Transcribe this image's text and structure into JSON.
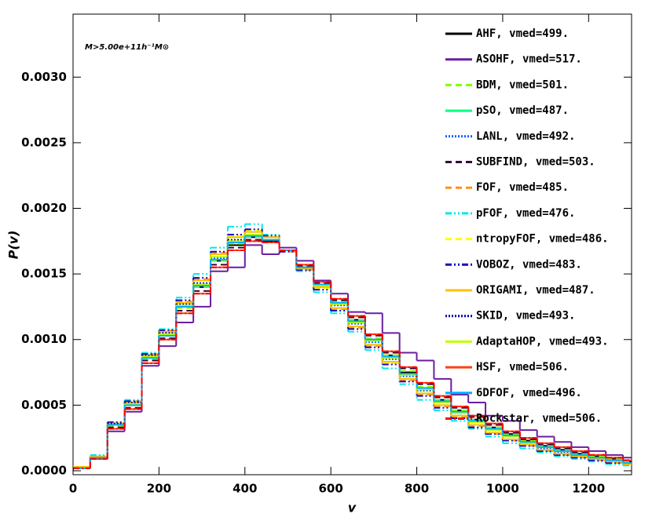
{
  "chart_data": {
    "type": "histogram",
    "annotation": "M>5.00e+11h⁻¹M⊙",
    "xlabel": "v",
    "ylabel": "P(v)",
    "xlim": [
      0,
      1300
    ],
    "ylim": [
      -3e-05,
      0.00348
    ],
    "xticks": [
      0,
      200,
      400,
      600,
      800,
      1000,
      1200
    ],
    "yticks": [
      {
        "value": 0,
        "label": "0.0000"
      },
      {
        "value": 0.0005,
        "label": "0.0005"
      },
      {
        "value": 0.001,
        "label": "0.0010"
      },
      {
        "value": 0.0015,
        "label": "0.0015"
      },
      {
        "value": 0.002,
        "label": "0.0020"
      },
      {
        "value": 0.0025,
        "label": "0.0025"
      },
      {
        "value": 0.003,
        "label": "0.0030"
      }
    ],
    "bins": [
      0,
      40,
      80,
      120,
      160,
      200,
      240,
      280,
      320,
      360,
      400,
      440,
      480,
      520,
      560,
      600,
      640,
      680,
      720,
      760,
      800,
      840,
      880,
      920,
      960,
      1000,
      1040,
      1080,
      1120,
      1160,
      1200,
      1240,
      1280,
      1320
    ],
    "series": [
      {
        "name": "AHF, vmed=499.",
        "color": "#000000",
        "dash": "solid",
        "values": [
          2e-05,
          0.0001,
          0.00035,
          0.0005,
          0.00086,
          0.00103,
          0.00125,
          0.0014,
          0.0016,
          0.00172,
          0.00178,
          0.00175,
          0.00168,
          0.00155,
          0.00142,
          0.00128,
          0.00115,
          0.001,
          0.00088,
          0.00075,
          0.00063,
          0.00054,
          0.00046,
          0.00039,
          0.00033,
          0.00028,
          0.00023,
          0.00019,
          0.00016,
          0.00013,
          0.00011,
          9e-05,
          7e-05
        ]
      },
      {
        "name": "ASOHF, vmed=517.",
        "color": "#6a1ea0",
        "dash": "solid",
        "values": [
          2e-05,
          9e-05,
          0.0003,
          0.00045,
          0.0008,
          0.00095,
          0.00113,
          0.00125,
          0.00152,
          0.00155,
          0.00172,
          0.00165,
          0.0017,
          0.0016,
          0.00145,
          0.00135,
          0.00121,
          0.0012,
          0.00105,
          0.0009,
          0.00084,
          0.0007,
          0.00058,
          0.00052,
          0.00042,
          0.00038,
          0.00031,
          0.00026,
          0.00022,
          0.00018,
          0.00015,
          0.00012,
          0.0001
        ]
      },
      {
        "name": "BDM, vmed=501.",
        "color": "#80ff00",
        "dash": "dashed",
        "values": [
          2e-05,
          0.0001,
          0.00034,
          0.0005,
          0.00085,
          0.00103,
          0.00124,
          0.0014,
          0.0016,
          0.00173,
          0.00178,
          0.00176,
          0.00168,
          0.00156,
          0.00142,
          0.00129,
          0.00115,
          0.00101,
          0.00088,
          0.00076,
          0.00064,
          0.00054,
          0.00046,
          0.00039,
          0.00033,
          0.00028,
          0.00023,
          0.00019,
          0.00016,
          0.00013,
          0.00011,
          9e-05,
          7e-05
        ]
      },
      {
        "name": "pSO, vmed=487.",
        "color": "#00ff80",
        "dash": "solid",
        "values": [
          3e-05,
          0.00011,
          0.00036,
          0.00052,
          0.00088,
          0.00106,
          0.00128,
          0.00145,
          0.00165,
          0.00178,
          0.00182,
          0.00178,
          0.00168,
          0.00154,
          0.0014,
          0.00124,
          0.0011,
          0.00096,
          0.00083,
          0.0007,
          0.00059,
          0.0005,
          0.00042,
          0.00035,
          0.00029,
          0.00024,
          0.0002,
          0.00016,
          0.00013,
          0.00011,
          9e-05,
          7e-05,
          5e-05
        ]
      },
      {
        "name": "LANL, vmed=492.",
        "color": "#0060ff",
        "dash": "dotted",
        "values": [
          2e-05,
          0.0001,
          0.00035,
          0.00051,
          0.00087,
          0.00104,
          0.00126,
          0.00142,
          0.00162,
          0.00175,
          0.0018,
          0.00176,
          0.00168,
          0.00155,
          0.00141,
          0.00126,
          0.00112,
          0.00098,
          0.00085,
          0.00072,
          0.00061,
          0.00052,
          0.00044,
          0.00037,
          0.00031,
          0.00026,
          0.00021,
          0.00017,
          0.00014,
          0.00012,
          0.0001,
          8e-05,
          6e-05
        ]
      },
      {
        "name": "SUBFIND, vmed=503.",
        "color": "#3a003a",
        "dash": "dashed",
        "values": [
          2e-05,
          9e-05,
          0.00033,
          0.00048,
          0.00084,
          0.00101,
          0.00122,
          0.00137,
          0.00157,
          0.0017,
          0.00176,
          0.00175,
          0.00168,
          0.00156,
          0.00143,
          0.0013,
          0.00117,
          0.00103,
          0.0009,
          0.00078,
          0.00066,
          0.00056,
          0.00048,
          0.00041,
          0.00035,
          0.00029,
          0.00024,
          0.0002,
          0.00017,
          0.00014,
          0.00012,
          0.0001,
          8e-05
        ]
      },
      {
        "name": "FOF, vmed=485.",
        "color": "#ff9020",
        "dash": "dashed",
        "values": [
          3e-05,
          0.00011,
          0.00036,
          0.00053,
          0.00089,
          0.00107,
          0.00129,
          0.00146,
          0.00166,
          0.00179,
          0.00183,
          0.00178,
          0.00167,
          0.00153,
          0.00139,
          0.00123,
          0.00109,
          0.00095,
          0.00082,
          0.00069,
          0.00058,
          0.00049,
          0.00041,
          0.00034,
          0.00028,
          0.00023,
          0.00019,
          0.00015,
          0.00012,
          0.0001,
          8e-05,
          6e-05,
          5e-05
        ]
      },
      {
        "name": "pFOF, vmed=476.",
        "color": "#00e8e8",
        "dash": "dashdotdot",
        "values": [
          3e-05,
          0.00012,
          0.00037,
          0.00054,
          0.0009,
          0.00108,
          0.00132,
          0.0015,
          0.0017,
          0.00186,
          0.00188,
          0.0018,
          0.00168,
          0.00152,
          0.00136,
          0.0012,
          0.00106,
          0.00092,
          0.00078,
          0.00066,
          0.00054,
          0.00046,
          0.00038,
          0.00032,
          0.00026,
          0.00021,
          0.00017,
          0.00014,
          0.00011,
          9e-05,
          7e-05,
          5e-05,
          4e-05
        ]
      },
      {
        "name": "ntropyFOF, vmed=486.",
        "color": "#ffff00",
        "dash": "dashed",
        "values": [
          3e-05,
          0.00011,
          0.00036,
          0.00052,
          0.00088,
          0.00106,
          0.00128,
          0.00145,
          0.00165,
          0.00179,
          0.00183,
          0.00178,
          0.00168,
          0.00154,
          0.00139,
          0.00124,
          0.0011,
          0.00096,
          0.00082,
          0.0007,
          0.00059,
          0.0005,
          0.00042,
          0.00035,
          0.00029,
          0.00024,
          0.0002,
          0.00016,
          0.00013,
          0.00011,
          9e-05,
          7e-05,
          5e-05
        ]
      },
      {
        "name": "VOBOZ, vmed=483.",
        "color": "#2000c0",
        "dash": "dashdotdot",
        "values": [
          3e-05,
          0.00011,
          0.00037,
          0.00053,
          0.00089,
          0.00107,
          0.0013,
          0.00147,
          0.00167,
          0.0018,
          0.00184,
          0.00179,
          0.00167,
          0.00153,
          0.00138,
          0.00122,
          0.00108,
          0.00094,
          0.00081,
          0.00068,
          0.00057,
          0.00048,
          0.0004,
          0.00033,
          0.00028,
          0.00023,
          0.00019,
          0.00015,
          0.00012,
          0.0001,
          8e-05,
          6e-05,
          5e-05
        ]
      },
      {
        "name": "ORIGAMI, vmed=487.",
        "color": "#ffc000",
        "dash": "solid",
        "values": [
          3e-05,
          0.00011,
          0.00036,
          0.00052,
          0.00088,
          0.00106,
          0.00128,
          0.00145,
          0.00165,
          0.00178,
          0.00182,
          0.00178,
          0.00168,
          0.00154,
          0.0014,
          0.00124,
          0.0011,
          0.00096,
          0.00083,
          0.0007,
          0.00059,
          0.0005,
          0.00042,
          0.00035,
          0.00029,
          0.00024,
          0.0002,
          0.00016,
          0.00013,
          0.00011,
          9e-05,
          7e-05,
          5e-05
        ]
      },
      {
        "name": "SKID, vmed=493.",
        "color": "#0000a0",
        "dash": "dotted",
        "values": [
          2e-05,
          0.0001,
          0.00036,
          0.00052,
          0.00088,
          0.00105,
          0.00127,
          0.00143,
          0.00163,
          0.00176,
          0.0018,
          0.00176,
          0.00168,
          0.00155,
          0.00141,
          0.00127,
          0.00113,
          0.00099,
          0.00086,
          0.00073,
          0.00062,
          0.00052,
          0.00044,
          0.00037,
          0.00031,
          0.00026,
          0.00021,
          0.00018,
          0.00015,
          0.00012,
          0.0001,
          8e-05,
          6e-05
        ]
      },
      {
        "name": "AdaptaHOP, vmed=493.",
        "color": "#c0ff00",
        "dash": "solid",
        "values": [
          2e-05,
          0.0001,
          0.00035,
          0.00051,
          0.00087,
          0.00104,
          0.00126,
          0.00142,
          0.00163,
          0.00175,
          0.0018,
          0.00176,
          0.00168,
          0.00155,
          0.00141,
          0.00127,
          0.00113,
          0.00099,
          0.00086,
          0.00073,
          0.00062,
          0.00052,
          0.00044,
          0.00037,
          0.00031,
          0.00026,
          0.00021,
          0.00018,
          0.00015,
          0.00012,
          0.0001,
          8e-05,
          6e-05
        ]
      },
      {
        "name": "HSF, vmed=506.",
        "color": "#ff4010",
        "dash": "solid",
        "values": [
          2e-05,
          9e-05,
          0.00032,
          0.00047,
          0.00082,
          0.001,
          0.0012,
          0.00135,
          0.00155,
          0.00168,
          0.00175,
          0.00174,
          0.00168,
          0.00157,
          0.00144,
          0.00131,
          0.00118,
          0.00104,
          0.00091,
          0.00079,
          0.00067,
          0.00057,
          0.00049,
          0.00042,
          0.00036,
          0.0003,
          0.00025,
          0.00021,
          0.00018,
          0.00015,
          0.00012,
          0.0001,
          8e-05
        ]
      },
      {
        "name": "6DFOF, vmed=496.",
        "color": "#00b0ff",
        "dash": "solid",
        "values": [
          2e-05,
          0.0001,
          0.00035,
          0.0005,
          0.00086,
          0.00103,
          0.00125,
          0.00141,
          0.00161,
          0.00174,
          0.00179,
          0.00176,
          0.00168,
          0.00155,
          0.00142,
          0.00128,
          0.00114,
          0.001,
          0.00087,
          0.00074,
          0.00063,
          0.00053,
          0.00045,
          0.00038,
          0.00032,
          0.00027,
          0.00022,
          0.00018,
          0.00015,
          0.00012,
          0.0001,
          8e-05,
          6e-05
        ]
      },
      {
        "name": "Rockstar, vmed=506.",
        "color": "#ff0000",
        "dash": "dashdot",
        "values": [
          2e-05,
          9e-05,
          0.00032,
          0.00047,
          0.00082,
          0.001,
          0.0012,
          0.00135,
          0.00155,
          0.00168,
          0.00175,
          0.00174,
          0.00168,
          0.00157,
          0.00144,
          0.00131,
          0.00118,
          0.00104,
          0.00091,
          0.00079,
          0.00067,
          0.00057,
          0.00049,
          0.00042,
          0.00036,
          0.0003,
          0.00025,
          0.00021,
          0.00018,
          0.00015,
          0.00012,
          0.0001,
          8e-05
        ]
      }
    ]
  }
}
